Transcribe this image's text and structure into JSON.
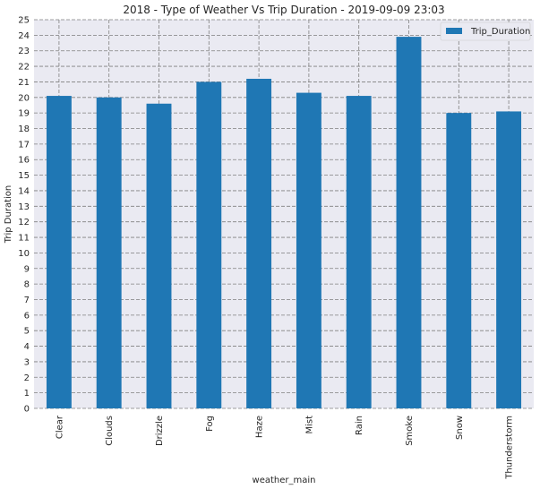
{
  "chart_data": {
    "type": "bar",
    "title": "2018 - Type of Weather Vs Trip Duration - 2019-09-09 23:03",
    "xlabel": "weather_main",
    "ylabel": "Trip Duration",
    "categories": [
      "Clear",
      "Clouds",
      "Drizzle",
      "Fog",
      "Haze",
      "Mist",
      "Rain",
      "Smoke",
      "Snow",
      "Thunderstorm"
    ],
    "series": [
      {
        "name": "Trip_Duration",
        "values": [
          20.1,
          20.0,
          19.6,
          21.0,
          21.2,
          20.3,
          20.1,
          23.9,
          19.0,
          19.1
        ]
      }
    ],
    "ylim": [
      0,
      25
    ],
    "yticks": [
      "0",
      "1",
      "2",
      "3",
      "4",
      "5",
      "6",
      "7",
      "8",
      "9",
      "10",
      "11",
      "12",
      "13",
      "14",
      "15",
      "16",
      "17",
      "18",
      "19",
      "20",
      "21",
      "22",
      "23",
      "24",
      "25"
    ],
    "grid": true,
    "legend_position": "top-right",
    "colors": {
      "bar": "#1f77b4",
      "plot_background": "#eaeaf2",
      "grid": "#808080",
      "text": "#262626"
    }
  }
}
